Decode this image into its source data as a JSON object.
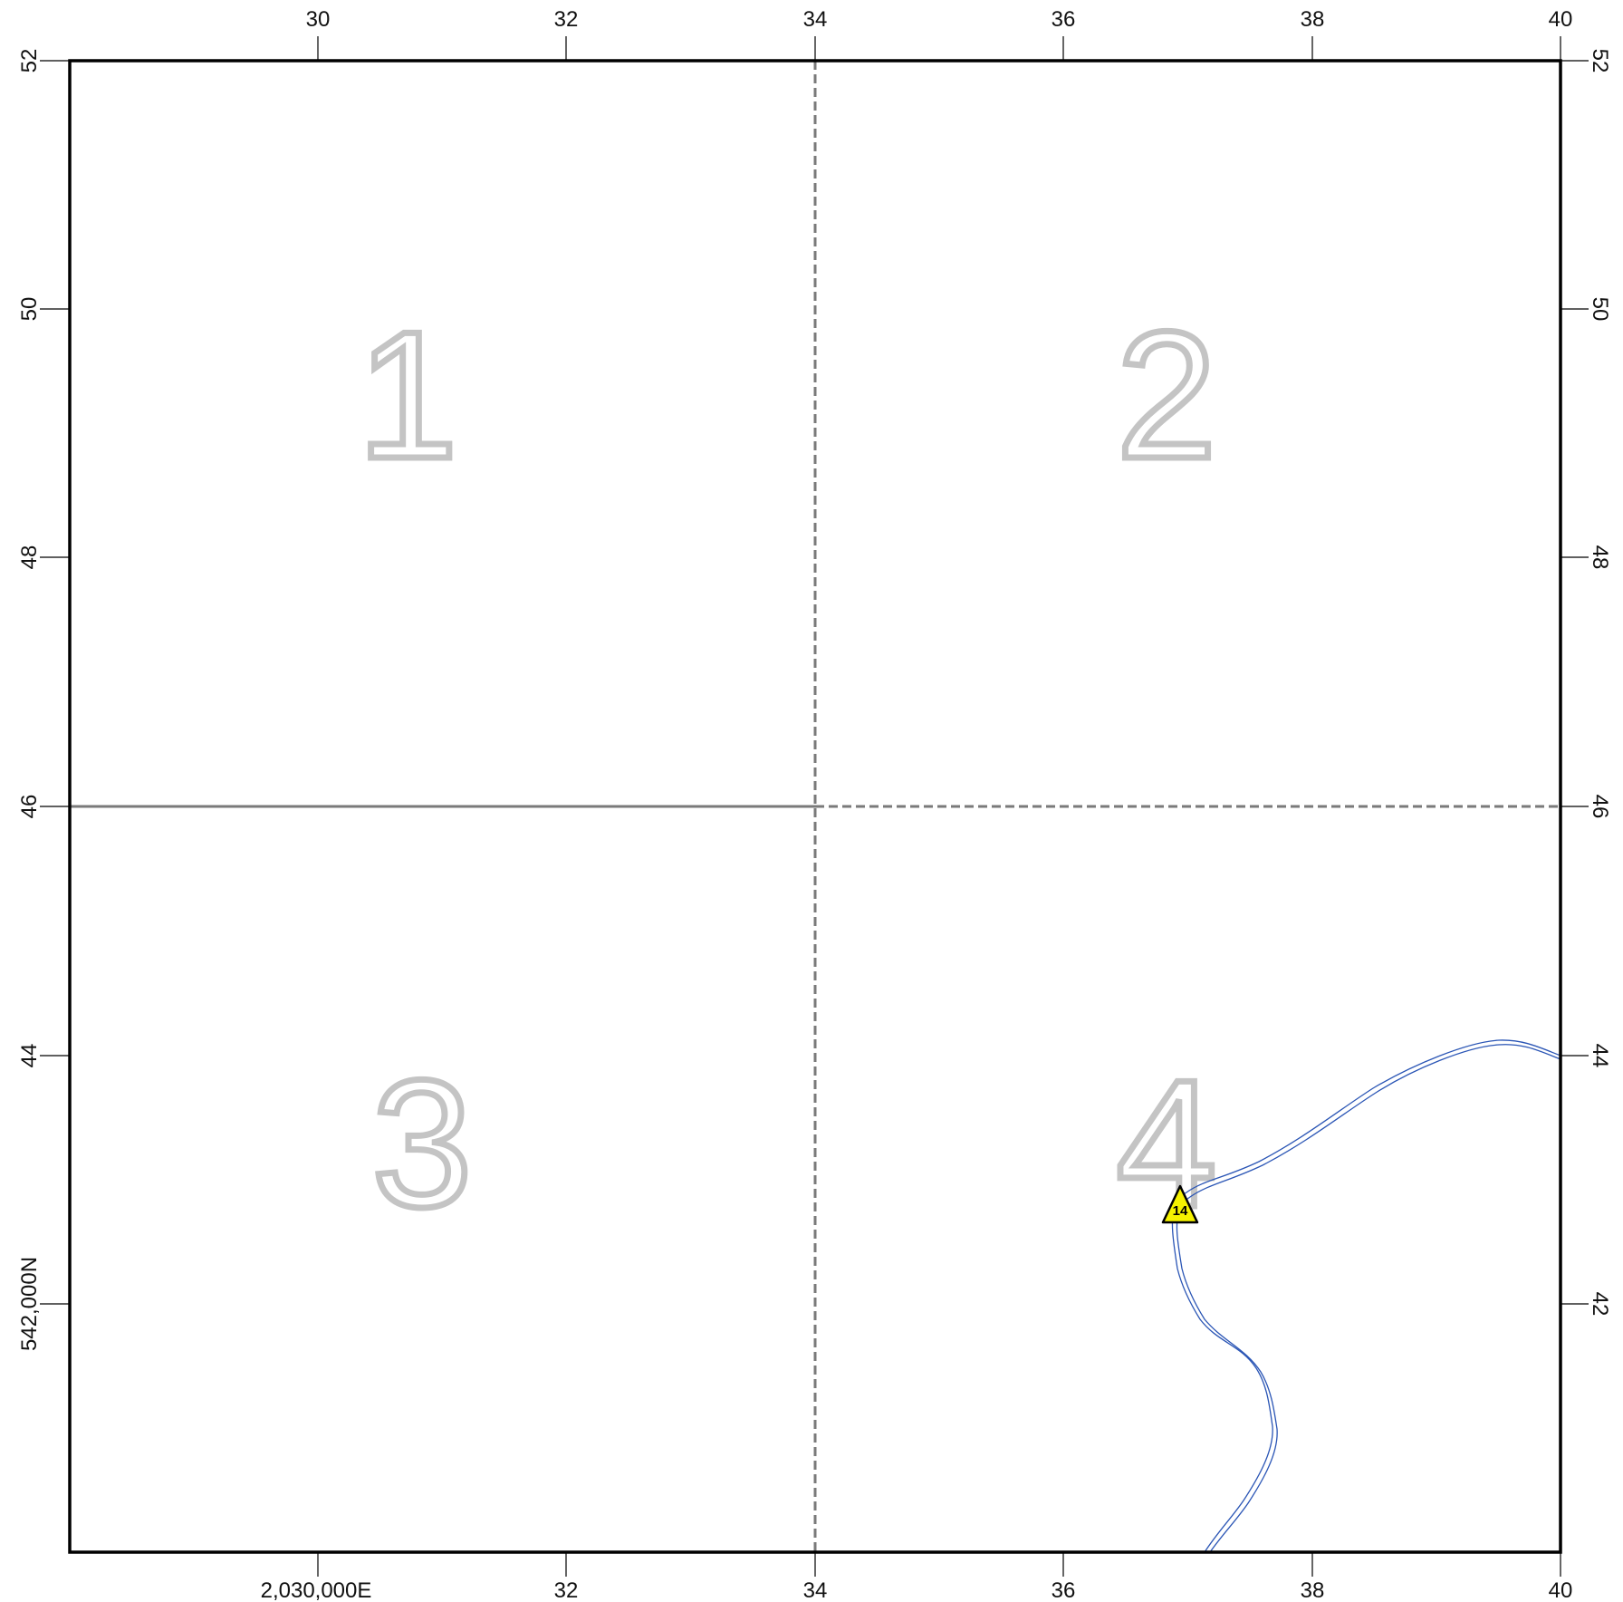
{
  "map": {
    "easting_axis": {
      "top_labels": [
        "30",
        "32",
        "34",
        "36",
        "38",
        "40"
      ],
      "bottom_labels": [
        "2,030,000E",
        "32",
        "34",
        "36",
        "38",
        "40"
      ]
    },
    "northing_axis": {
      "left_labels": [
        "52",
        "50",
        "48",
        "46",
        "44",
        "542,000N"
      ],
      "right_labels": [
        "52",
        "50",
        "48",
        "46",
        "44",
        "42"
      ]
    },
    "quadrants": [
      {
        "label": "1"
      },
      {
        "label": "2"
      },
      {
        "label": "3"
      },
      {
        "label": "4"
      }
    ],
    "marker": {
      "type": "triangle",
      "label": "14",
      "color": "#f5f200"
    },
    "colors": {
      "frame": "#000000",
      "section_line": "#7a7a7a",
      "quadrant_number": "#c4c4c4",
      "river": "#2a55b5"
    }
  }
}
